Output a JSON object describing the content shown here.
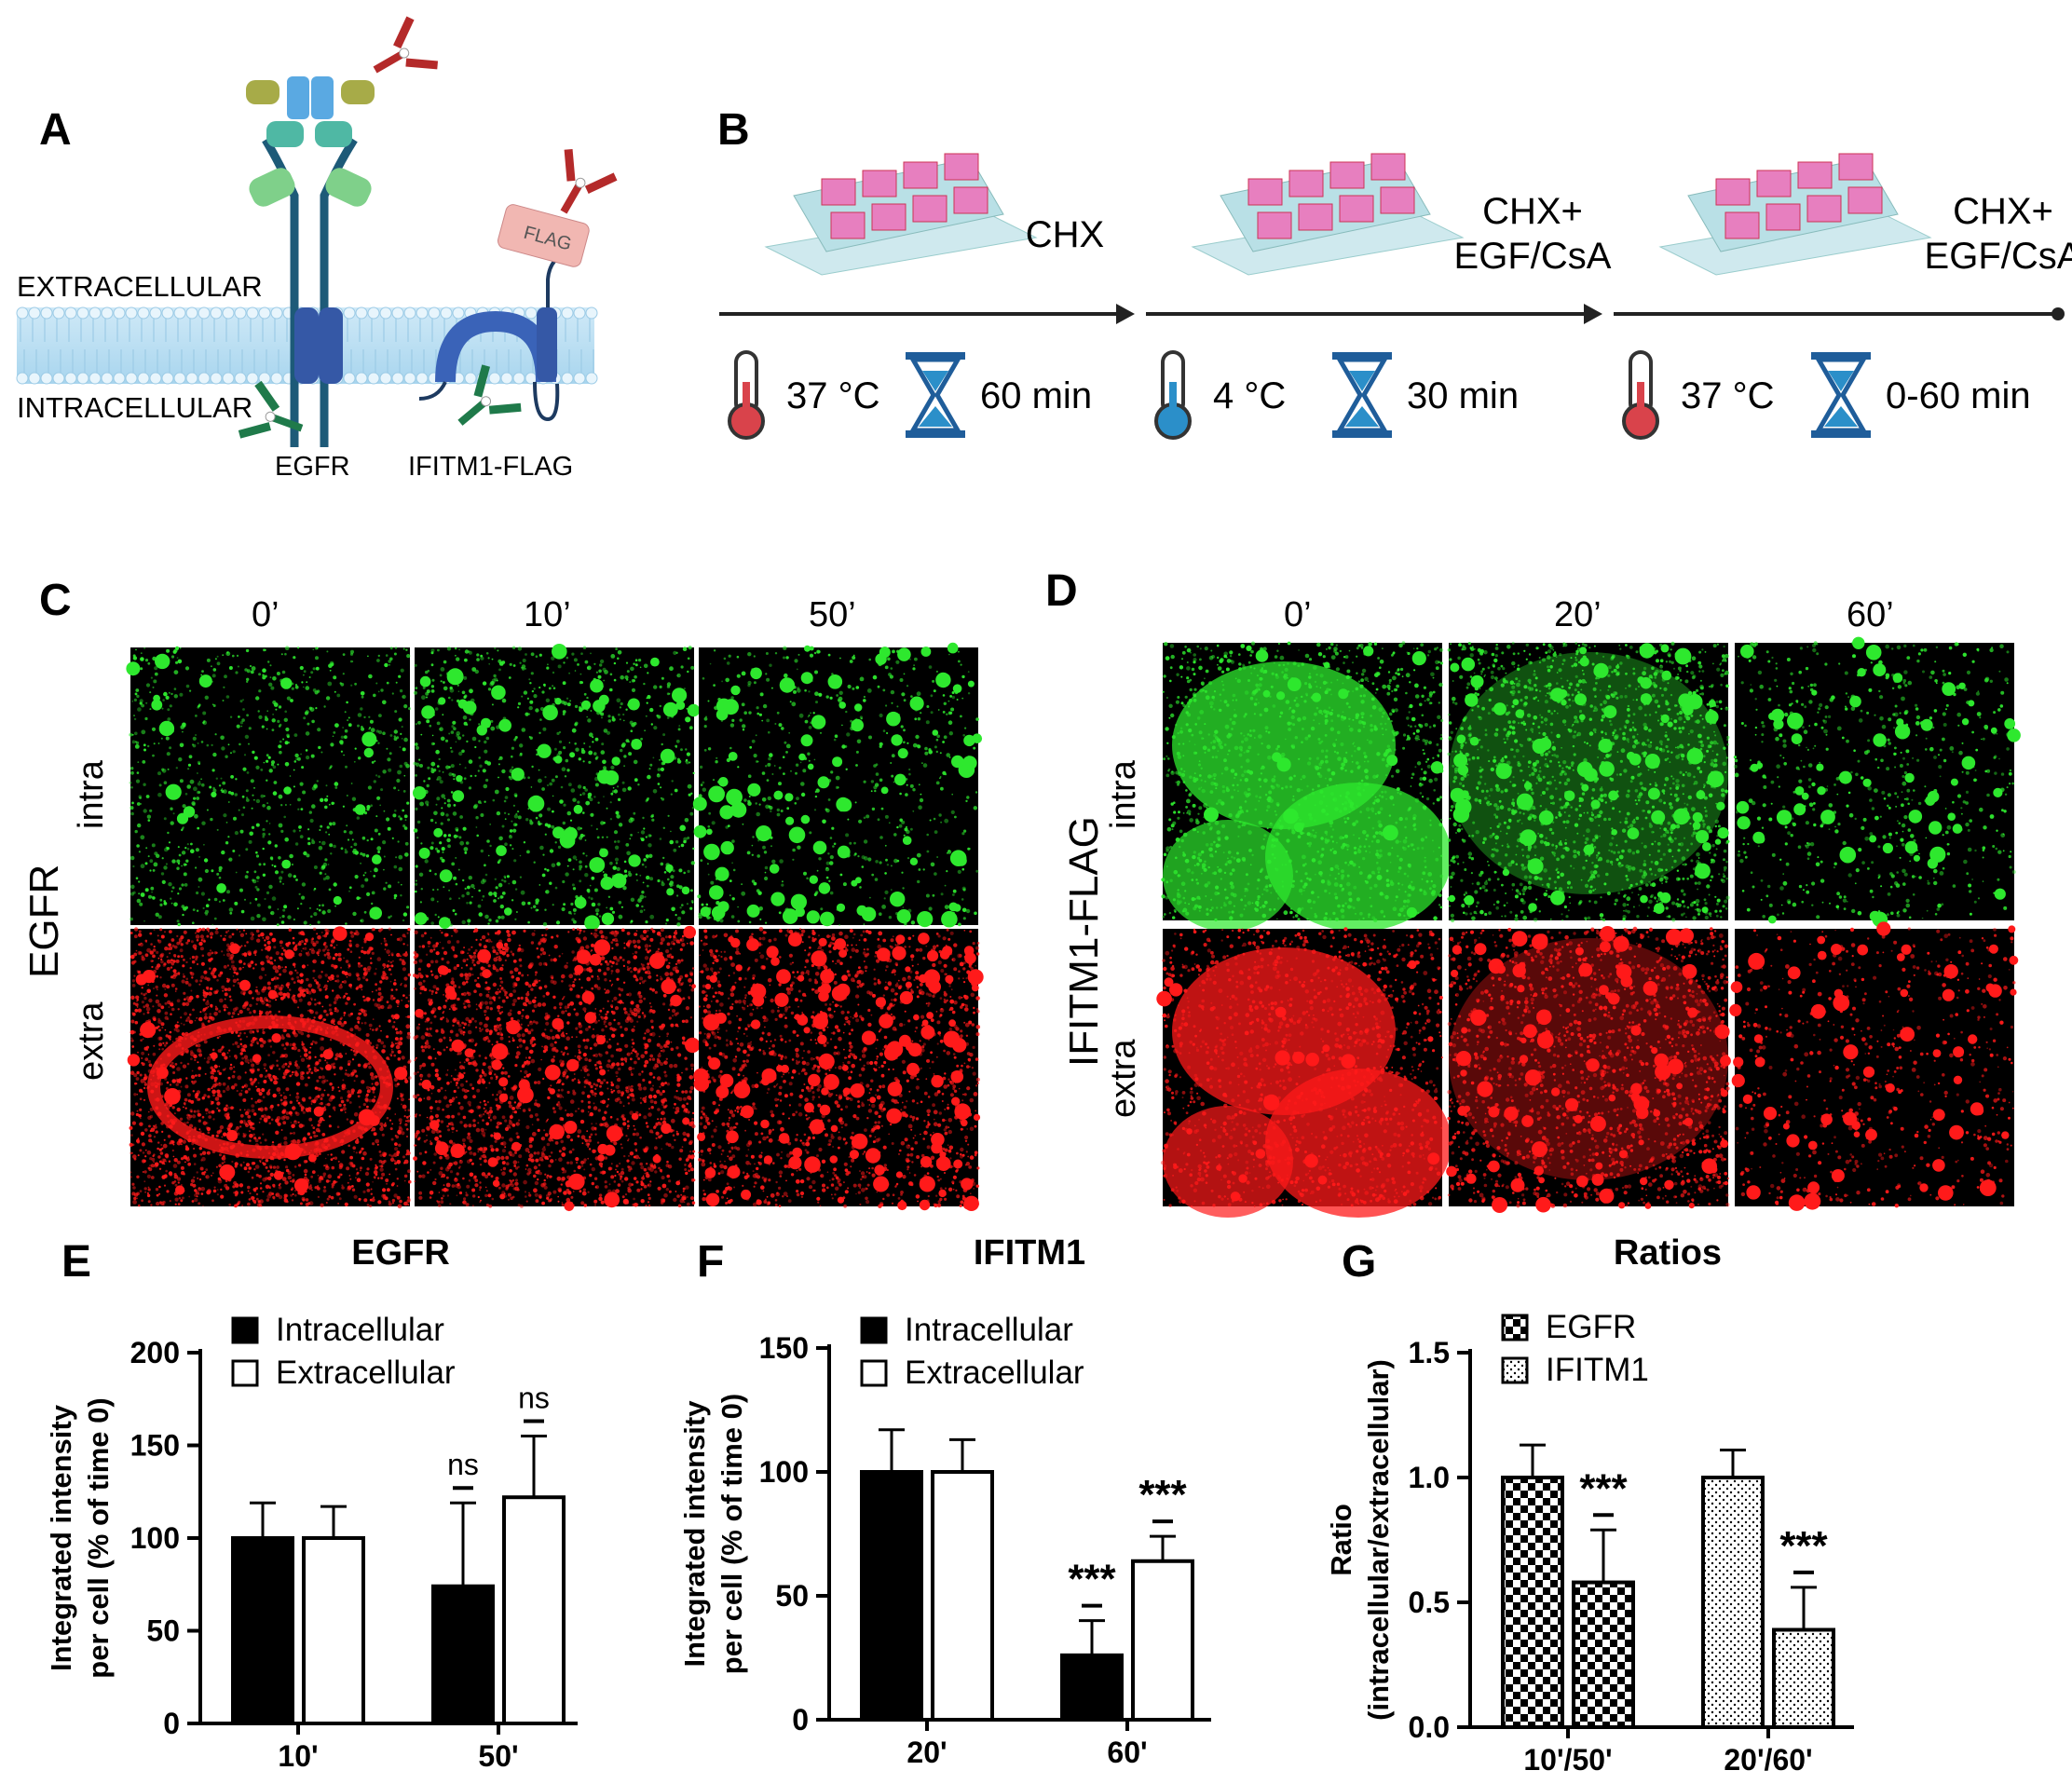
{
  "panels": {
    "A": {
      "letter": "A",
      "extracellular_label": "EXTRACELLULAR",
      "intracellular_label": "INTRACELLULAR",
      "receptor_label": "EGFR",
      "protein_label": "IFITM1-FLAG",
      "tag_label": "FLAG"
    },
    "B": {
      "letter": "B",
      "steps": [
        {
          "treatment": "CHX",
          "treatment_line2": "",
          "temperature": "37 °C",
          "duration": "60 min",
          "thermo_color": "#d9434b"
        },
        {
          "treatment": "CHX+",
          "treatment_line2": "EGF/CsA",
          "temperature": "4 °C",
          "duration": "30 min",
          "thermo_color": "#2b8fc9"
        },
        {
          "treatment": "CHX+",
          "treatment_line2": "EGF/CsA",
          "temperature": "37 °C",
          "duration": "0-60 min",
          "thermo_color": "#d9434b"
        }
      ]
    },
    "C": {
      "letter": "C",
      "row_group": "EGFR",
      "rows": [
        "intra",
        "extra"
      ],
      "columns": [
        "0’",
        "10’",
        "50’"
      ]
    },
    "D": {
      "letter": "D",
      "row_group": "IFITM1-FLAG",
      "rows": [
        "intra",
        "extra"
      ],
      "columns": [
        "0’",
        "20’",
        "60’"
      ]
    }
  },
  "colors": {
    "extracellular_red": "#e02020",
    "intracellular_green": "#3aa83a",
    "stain_green": "#2ee82e",
    "stain_red": "#ff1a1a",
    "bar_black": "#000000"
  },
  "chart_data": [
    {
      "panel": "E",
      "type": "bar",
      "title": "EGFR",
      "xlabel": "",
      "ylabel": "Integrated intensity per cell (% of time 0)",
      "ylabel_line1": "Integrated intensity",
      "ylabel_line2": "per cell (% of time 0)",
      "ylim": [
        0,
        200
      ],
      "yticks": [
        0,
        50,
        100,
        150,
        200
      ],
      "categories": [
        "10'",
        "50'"
      ],
      "legend_position": "top-left",
      "series": [
        {
          "name": "Intracellular",
          "fill": "solid-black",
          "values": [
            100,
            74
          ],
          "errors": [
            19,
            45
          ]
        },
        {
          "name": "Extracellular",
          "fill": "white",
          "values": [
            100,
            122
          ],
          "errors": [
            17,
            33
          ]
        }
      ],
      "annotations": [
        {
          "category": "50'",
          "series": "Intracellular",
          "text": "ns"
        },
        {
          "category": "50'",
          "series": "Extracellular",
          "text": "ns"
        }
      ]
    },
    {
      "panel": "F",
      "type": "bar",
      "title": "IFITM1",
      "xlabel": "",
      "ylabel": "Integrated intensity per cell (% of time 0)",
      "ylabel_line1": "Integrated intensity",
      "ylabel_line2": "per cell (% of time 0)",
      "ylim": [
        0,
        150
      ],
      "yticks": [
        0,
        50,
        100,
        150
      ],
      "categories": [
        "20'",
        "60'"
      ],
      "legend_position": "top-left",
      "series": [
        {
          "name": "Intracellular",
          "fill": "solid-black",
          "values": [
            100,
            26
          ],
          "errors": [
            17,
            14
          ]
        },
        {
          "name": "Extracellular",
          "fill": "white",
          "values": [
            100,
            64
          ],
          "errors": [
            13,
            10
          ]
        }
      ],
      "annotations": [
        {
          "category": "60'",
          "series": "Intracellular",
          "text": "***"
        },
        {
          "category": "60'",
          "series": "Extracellular",
          "text": "***"
        }
      ]
    },
    {
      "panel": "G",
      "type": "bar",
      "title": "Ratios",
      "xlabel": "",
      "ylabel": "Ratio (intracellular/extracellular)",
      "ylabel_line1": "Ratio",
      "ylabel_line2": "(intracellular/extracellular)",
      "ylim": [
        0,
        1.5
      ],
      "yticks": [
        "0.0",
        "0.5",
        "1.0",
        "1.5"
      ],
      "categories": [
        "10'/50'",
        "20'/60'"
      ],
      "legend_position": "top-left",
      "series": [
        {
          "name": "EGFR",
          "fill": "checkerboard",
          "bars": [
            {
              "category": "10'/50'",
              "values": [
                1.0,
                0.58
              ],
              "errors": [
                0.13,
                0.21
              ]
            }
          ]
        },
        {
          "name": "IFITM1",
          "fill": "dotted",
          "bars": [
            {
              "category": "20'/60'",
              "values": [
                1.0,
                0.39
              ],
              "errors": [
                0.11,
                0.17
              ]
            }
          ]
        }
      ],
      "annotations": [
        {
          "category": "10'/50'",
          "text": "***"
        },
        {
          "category": "20'/60'",
          "text": "***"
        }
      ]
    }
  ]
}
